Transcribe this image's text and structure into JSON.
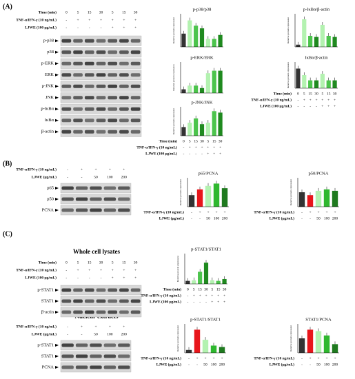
{
  "panel_labels": [
    "(A)",
    "(B)",
    "(C)"
  ],
  "section_titles": [
    "Whole cell lysates",
    "Nuclear extracts"
  ],
  "blots": [
    {
      "header": [
        {
          "label": "Time (min)",
          "cells": [
            "0",
            "5",
            "15",
            "30",
            "5",
            "15",
            "30"
          ]
        },
        {
          "label": "TNF-α/IFN-γ (10 ng/mL)",
          "cells": [
            "-",
            "+",
            "+",
            "+",
            "+",
            "+",
            "+"
          ]
        },
        {
          "label": "LJWE (100 μg/mL)",
          "cells": [
            "-",
            "-",
            "-",
            "-",
            "+",
            "+",
            "+"
          ]
        }
      ],
      "rows": [
        "p-p38",
        "p38",
        "p-ERK",
        "ERK",
        "p-JNK",
        "JNK",
        "p-IκBα",
        "IκBα",
        "β-actin"
      ]
    },
    {
      "header": [
        {
          "label": "TNF-α/IFN-γ (10 ng/mL)",
          "cells": [
            "-",
            "+",
            "+",
            "+",
            "+"
          ]
        },
        {
          "label": "LJWE (μg/mL)",
          "cells": [
            "-",
            "-",
            "50",
            "100",
            "200"
          ]
        }
      ],
      "rows": [
        "p65",
        "p50",
        "PCNA"
      ]
    },
    {
      "header": [
        {
          "label": "Time (min)",
          "cells": [
            "0",
            "5",
            "15",
            "30",
            "5",
            "15",
            "30"
          ]
        },
        {
          "label": "TNF-α/IFN-γ (10 ng/mL)",
          "cells": [
            "-",
            "+",
            "+",
            "+",
            "+",
            "+",
            "+"
          ]
        },
        {
          "label": "LJWE (100 μg/mL)",
          "cells": [
            "-",
            "-",
            "-",
            "-",
            "+",
            "+",
            "+"
          ]
        }
      ],
      "rows": [
        "p-STAT1",
        "STAT1",
        "β-actin"
      ]
    },
    {
      "header": [
        {
          "label": "TNF-α/IFN-γ (10 ng/mL)",
          "cells": [
            "-",
            "+",
            "+",
            "+",
            "+"
          ]
        },
        {
          "label": "LJWE (μg/mL)",
          "cells": [
            "-",
            "-",
            "50",
            "100",
            "200"
          ]
        }
      ],
      "rows": [
        "p-STAT1",
        "STAT1",
        "PCNA"
      ]
    }
  ],
  "charts": [
    {
      "type": "bar",
      "title": "p-p38/p38",
      "y_label": "Relative protein expression",
      "ylim": [
        0,
        2.5
      ],
      "values": [
        1.0,
        2.0,
        1.6,
        1.4,
        0.6,
        0.6,
        0.9
      ],
      "colors": [
        "#333333",
        "#b3f2b0",
        "#4cc44c",
        "#1f8a1f",
        "#b3f2b0",
        "#4cc44c",
        "#1f8a1f"
      ]
    },
    {
      "type": "bar",
      "title": "p-IκBα/β-actin",
      "y_label": "Relative protein expression",
      "ylim": [
        0,
        3
      ],
      "values": [
        0.2,
        2.5,
        1.0,
        0.9,
        2.0,
        1.0,
        0.9
      ],
      "colors": [
        "#333333",
        "#b3f2b0",
        "#4cc44c",
        "#1f8a1f",
        "#b3f2b0",
        "#4cc44c",
        "#1f8a1f"
      ]
    },
    {
      "type": "bar",
      "title": "p-ERK/ERK",
      "y_label": "Relative protein expression",
      "ylim": [
        0,
        2.5
      ],
      "values": [
        0.3,
        0.6,
        0.6,
        0.4,
        1.6,
        1.8,
        1.8
      ],
      "colors": [
        "#333333",
        "#b3f2b0",
        "#4cc44c",
        "#1f8a1f",
        "#b3f2b0",
        "#4cc44c",
        "#1f8a1f"
      ]
    },
    {
      "type": "bar",
      "title": "IκBα/β-actin",
      "y_label": "Relative protein expression",
      "ylim": [
        0,
        2
      ],
      "values": [
        1.5,
        1.0,
        0.6,
        0.6,
        1.1,
        0.6,
        0.6
      ],
      "colors": [
        "#333333",
        "#b3f2b0",
        "#4cc44c",
        "#1f8a1f",
        "#b3f2b0",
        "#4cc44c",
        "#1f8a1f"
      ],
      "conditions": [
        {
          "label": "Time (min)",
          "cells": [
            "0",
            "5",
            "15",
            "30",
            "5",
            "15",
            "30"
          ]
        },
        {
          "label": "TNF-α/IFN-γ (10 ng/mL)",
          "cells": [
            "-",
            "+",
            "+",
            "+",
            "+",
            "+",
            "+"
          ]
        },
        {
          "label": "LJWE (100 μg/mL)",
          "cells": [
            "-",
            "-",
            "-",
            "-",
            "+",
            "+",
            "+"
          ]
        }
      ]
    },
    {
      "type": "bar",
      "title": "p-JNK/JNK",
      "y_label": "Relative protein expression",
      "ylim": [
        0,
        2
      ],
      "values": [
        0.6,
        0.9,
        1.2,
        0.8,
        0.9,
        1.7,
        1.6
      ],
      "colors": [
        "#333333",
        "#b3f2b0",
        "#4cc44c",
        "#1f8a1f",
        "#b3f2b0",
        "#4cc44c",
        "#1f8a1f"
      ],
      "conditions": [
        {
          "label": "Time (min)",
          "cells": [
            "0",
            "5",
            "15",
            "30",
            "5",
            "15",
            "30"
          ]
        },
        {
          "label": "TNF-α/IFN-γ (10 ng/mL)",
          "cells": [
            "-",
            "+",
            "+",
            "+",
            "+",
            "+",
            "+"
          ]
        },
        {
          "label": "LJWE (100 μg/mL)",
          "cells": [
            "-",
            "-",
            "-",
            "-",
            "+",
            "+",
            "+"
          ]
        }
      ]
    },
    {
      "type": "bar",
      "title": "p65/PCNA",
      "y_label": "Relative protein expression",
      "ylim": [
        0,
        2.5
      ],
      "values": [
        1.0,
        1.5,
        1.8,
        2.0,
        1.6
      ],
      "colors": [
        "#333333",
        "#e8161b",
        "#b3f2b0",
        "#2fb82f",
        "#1f7a1f"
      ],
      "conditions": [
        {
          "label": "TNF-α/IFN-γ (10 ng/mL)",
          "cells": [
            "-",
            "+",
            "+",
            "+",
            "+"
          ]
        },
        {
          "label": "LJWE (μg/mL)",
          "cells": [
            "-",
            "-",
            "50",
            "100",
            "200"
          ]
        }
      ]
    },
    {
      "type": "bar",
      "title": "p50/PCNA",
      "y_label": "Relative protein expression",
      "ylim": [
        0,
        2
      ],
      "values": [
        1.0,
        0.8,
        1.1,
        1.2,
        1.1
      ],
      "colors": [
        "#333333",
        "#e8161b",
        "#b3f2b0",
        "#2fb82f",
        "#1f7a1f"
      ],
      "conditions": [
        {
          "label": "TNF-α/IFN-γ (10 ng/mL)",
          "cells": [
            "-",
            "+",
            "+",
            "+",
            "+"
          ]
        },
        {
          "label": "LJWE (μg/mL)",
          "cells": [
            "-",
            "-",
            "50",
            "100",
            "200"
          ]
        }
      ]
    },
    {
      "type": "bar",
      "title": "p-STAT1/STAT1",
      "y_label": "Relative protein expression",
      "ylim": [
        0,
        5
      ],
      "values": [
        0.5,
        0.6,
        2.0,
        3.5,
        0.6,
        0.5,
        0.8
      ],
      "colors": [
        "#333333",
        "#b3f2b0",
        "#4cc44c",
        "#1f8a1f",
        "#b3f2b0",
        "#4cc44c",
        "#1f8a1f"
      ],
      "conditions": [
        {
          "label": "Time (min)",
          "cells": [
            "0",
            "5",
            "15",
            "30",
            "5",
            "15",
            "30"
          ]
        },
        {
          "label": "TNF-α/IFN-γ (10 ng/mL)",
          "cells": [
            "-",
            "+",
            "+",
            "+",
            "+",
            "+",
            "+"
          ]
        },
        {
          "label": "LJWE (100 μg/mL)",
          "cells": [
            "-",
            "-",
            "-",
            "-",
            "+",
            "+",
            "+"
          ]
        }
      ]
    },
    {
      "type": "bar",
      "title": "p-STAT1/STAT1",
      "y_label": "Relative protein expression",
      "ylim": [
        0,
        10
      ],
      "values": [
        1.0,
        8.0,
        4.5,
        2.5,
        2.0
      ],
      "colors": [
        "#333333",
        "#e8161b",
        "#b3f2b0",
        "#2fb82f",
        "#1f7a1f"
      ],
      "conditions": [
        {
          "label": "TNF-α/IFN-γ (10 ng/mL)",
          "cells": [
            "-",
            "+",
            "+",
            "+",
            "+"
          ]
        },
        {
          "label": "LJWE (μg/mL)",
          "cells": [
            "-",
            "-",
            "50",
            "100",
            "200"
          ]
        }
      ]
    },
    {
      "type": "bar",
      "title": "STAT1/PCNA",
      "y_label": "Relative protein expression",
      "ylim": [
        0,
        2
      ],
      "values": [
        1.0,
        1.6,
        1.5,
        1.2,
        0.6
      ],
      "colors": [
        "#333333",
        "#e8161b",
        "#b3f2b0",
        "#2fb82f",
        "#1f7a1f"
      ],
      "conditions": [
        {
          "label": "TNF-α/IFN-γ (10 ng/mL)",
          "cells": [
            "-",
            "+",
            "+",
            "+",
            "+"
          ]
        },
        {
          "label": "LJWE (μg/mL)",
          "cells": [
            "-",
            "-",
            "50",
            "100",
            "200"
          ]
        }
      ]
    }
  ]
}
